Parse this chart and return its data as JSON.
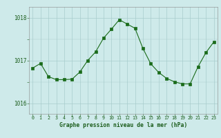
{
  "x": [
    0,
    1,
    2,
    3,
    4,
    5,
    6,
    7,
    8,
    9,
    10,
    11,
    12,
    13,
    14,
    15,
    16,
    17,
    18,
    19,
    20,
    21,
    22,
    23
  ],
  "y": [
    1016.82,
    1016.93,
    1016.62,
    1016.55,
    1016.55,
    1016.56,
    1016.73,
    1017.0,
    1017.2,
    1017.52,
    1017.73,
    1017.95,
    1017.85,
    1017.75,
    1017.28,
    1016.92,
    1016.72,
    1016.58,
    1016.5,
    1016.45,
    1016.45,
    1016.85,
    1017.18,
    1017.43
  ],
  "line_color": "#1a6b1a",
  "marker_color": "#1a6b1a",
  "bg_color": "#ceeaea",
  "grid_color": "#a8cccc",
  "title": "Graphe pression niveau de la mer (hPa)",
  "ylabel_ticks": [
    1016,
    1017,
    1018
  ],
  "ylim": [
    1015.75,
    1018.25
  ],
  "xlim": [
    -0.5,
    23.5
  ]
}
